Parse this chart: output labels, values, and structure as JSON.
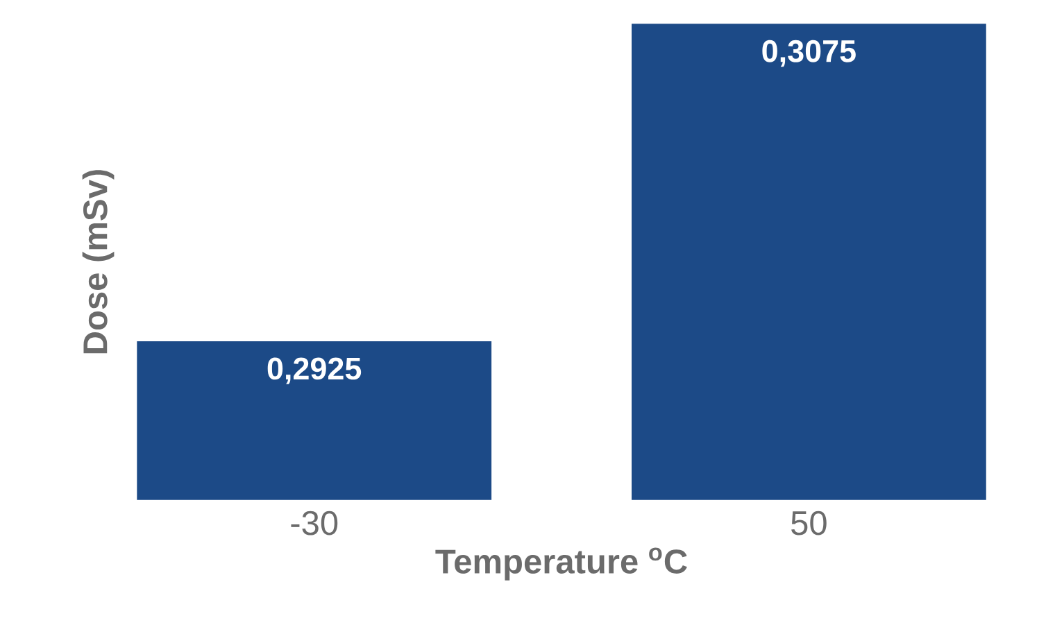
{
  "chart_data": {
    "type": "bar",
    "xlabel": "Temperature $^{o}$C",
    "ylabel": "Dose (mSv)",
    "categories": [
      "-30",
      "50"
    ],
    "values": [
      0.2925,
      0.3075
    ],
    "color": "#1c4a87",
    "value_labels": [
      "0,2925",
      "0,3075"
    ],
    "ylim": [
      0.285,
      0.3075
    ],
    "tick_labels": "x"
  }
}
